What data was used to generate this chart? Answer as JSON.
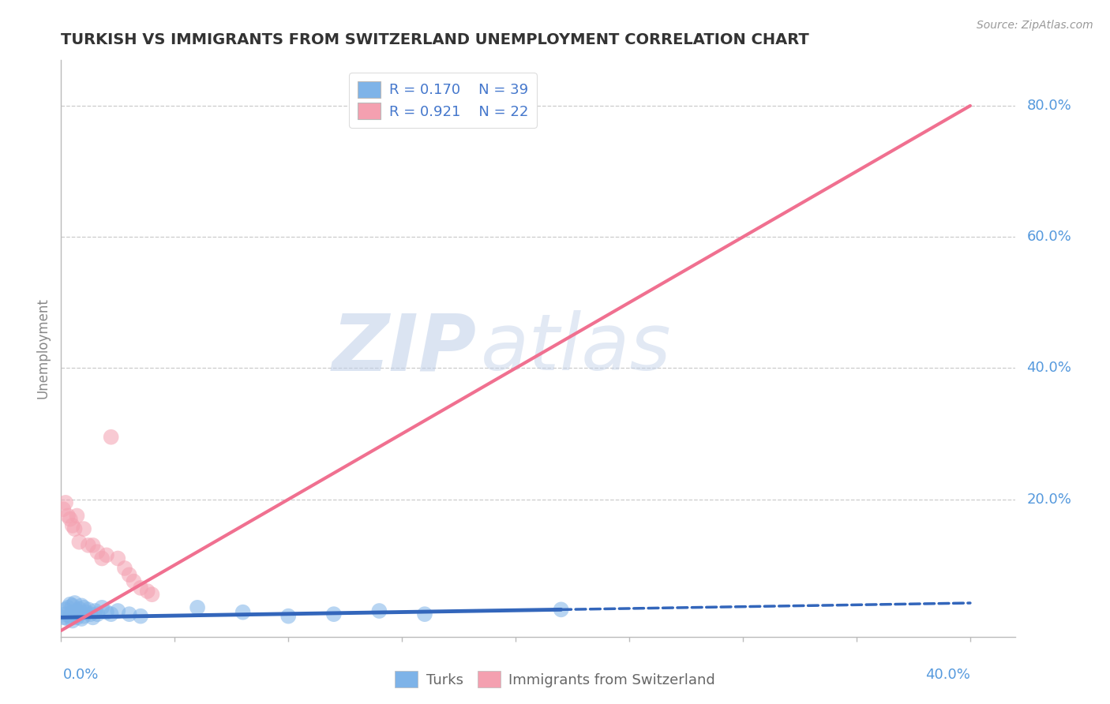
{
  "title": "TURKISH VS IMMIGRANTS FROM SWITZERLAND UNEMPLOYMENT CORRELATION CHART",
  "source": "Source: ZipAtlas.com",
  "ylabel": "Unemployment",
  "y_tick_labels": [
    "20.0%",
    "40.0%",
    "60.0%",
    "80.0%"
  ],
  "y_tick_values": [
    0.2,
    0.4,
    0.6,
    0.8
  ],
  "xlim": [
    0.0,
    0.42
  ],
  "ylim": [
    -0.01,
    0.87
  ],
  "legend_r1": "R = 0.170",
  "legend_n1": "N = 39",
  "legend_r2": "R = 0.921",
  "legend_n2": "N = 22",
  "turks_color": "#7EB3E8",
  "swiss_color": "#F4A0B0",
  "turks_line_color": "#3366BB",
  "swiss_line_color": "#F07090",
  "watermark_zip": "ZIP",
  "watermark_atlas": "atlas",
  "background_color": "#FFFFFF",
  "turks_scatter_x": [
    0.001,
    0.002,
    0.002,
    0.003,
    0.003,
    0.004,
    0.004,
    0.005,
    0.005,
    0.005,
    0.006,
    0.006,
    0.007,
    0.007,
    0.008,
    0.008,
    0.009,
    0.009,
    0.01,
    0.01,
    0.011,
    0.012,
    0.013,
    0.014,
    0.015,
    0.016,
    0.018,
    0.02,
    0.022,
    0.025,
    0.03,
    0.035,
    0.06,
    0.08,
    0.1,
    0.12,
    0.14,
    0.16,
    0.22
  ],
  "turks_scatter_y": [
    0.02,
    0.025,
    0.032,
    0.018,
    0.035,
    0.022,
    0.04,
    0.015,
    0.028,
    0.038,
    0.025,
    0.042,
    0.03,
    0.02,
    0.033,
    0.025,
    0.018,
    0.038,
    0.022,
    0.035,
    0.028,
    0.032,
    0.025,
    0.02,
    0.03,
    0.025,
    0.035,
    0.028,
    0.025,
    0.03,
    0.025,
    0.022,
    0.035,
    0.028,
    0.022,
    0.025,
    0.03,
    0.025,
    0.032
  ],
  "swiss_scatter_x": [
    0.001,
    0.002,
    0.003,
    0.004,
    0.005,
    0.006,
    0.007,
    0.008,
    0.01,
    0.012,
    0.014,
    0.016,
    0.018,
    0.02,
    0.022,
    0.025,
    0.028,
    0.03,
    0.032,
    0.035,
    0.038,
    0.04
  ],
  "swiss_scatter_y": [
    0.185,
    0.195,
    0.175,
    0.17,
    0.16,
    0.155,
    0.175,
    0.135,
    0.155,
    0.13,
    0.13,
    0.12,
    0.11,
    0.115,
    0.295,
    0.11,
    0.095,
    0.085,
    0.075,
    0.065,
    0.06,
    0.055
  ],
  "turks_line_x0": 0.0,
  "turks_line_x1": 0.22,
  "turks_line_x2": 0.4,
  "turks_line_y0": 0.02,
  "turks_line_y1": 0.032,
  "turks_line_y2": 0.042,
  "swiss_line_x0": 0.0,
  "swiss_line_x1": 0.4,
  "swiss_line_y0": 0.0,
  "swiss_line_y1": 0.8
}
